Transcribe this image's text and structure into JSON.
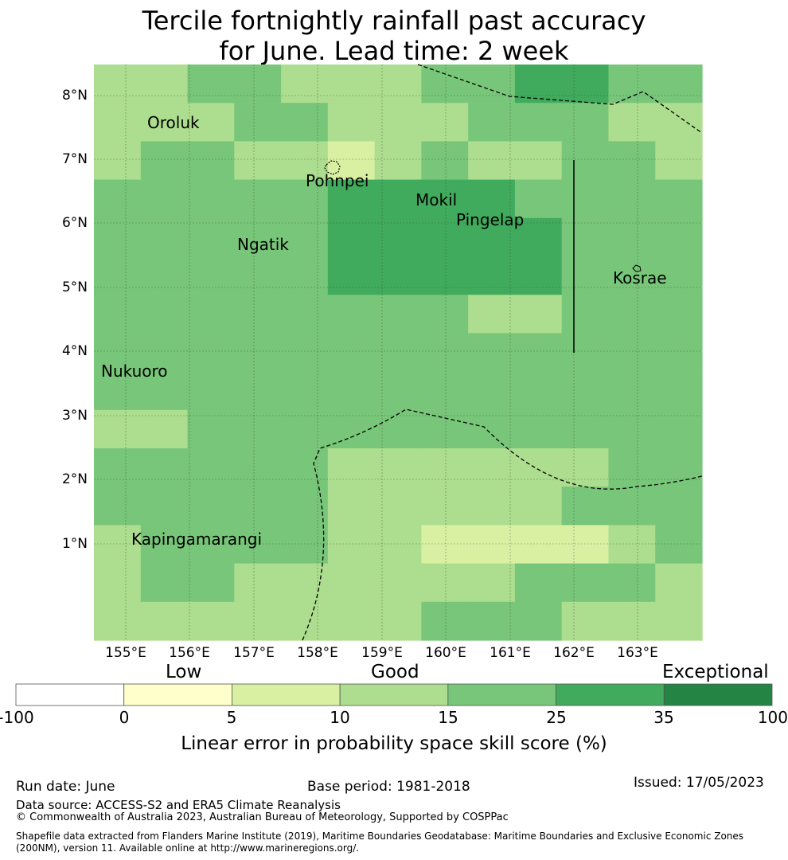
{
  "title": {
    "line1": "Tercile fortnightly rainfall past accuracy",
    "line2": "for June. Lead time: 2 week"
  },
  "map": {
    "lat_labels": [
      "8°N",
      "7°N",
      "6°N",
      "5°N",
      "4°N",
      "3°N",
      "2°N",
      "1°N"
    ],
    "lon_labels": [
      "155°E",
      "156°E",
      "157°E",
      "158°E",
      "159°E",
      "160°E",
      "161°E",
      "162°E",
      "163°E"
    ],
    "places": [
      {
        "name": "Oroluk"
      },
      {
        "name": "Pohnpei"
      },
      {
        "name": "Mokil"
      },
      {
        "name": "Pingelap"
      },
      {
        "name": "Ngatik"
      },
      {
        "name": "Kosrae"
      },
      {
        "name": "Nukuoro"
      },
      {
        "name": "Kapingamarangi"
      }
    ],
    "grid_levels": [
      [
        2,
        2,
        3,
        3,
        2,
        2,
        2,
        3,
        3,
        4,
        4,
        3,
        3
      ],
      [
        2,
        2,
        2,
        3,
        3,
        2,
        2,
        2,
        3,
        3,
        3,
        2,
        2
      ],
      [
        2,
        3,
        3,
        2,
        2,
        1,
        2,
        3,
        2,
        2,
        3,
        3,
        2
      ],
      [
        3,
        3,
        3,
        3,
        3,
        4,
        4,
        4,
        4,
        3,
        3,
        3,
        3
      ],
      [
        3,
        3,
        3,
        3,
        3,
        4,
        4,
        4,
        4,
        4,
        3,
        3,
        3
      ],
      [
        3,
        3,
        3,
        3,
        3,
        4,
        4,
        4,
        4,
        4,
        3,
        3,
        3
      ],
      [
        3,
        3,
        3,
        3,
        3,
        3,
        3,
        3,
        2,
        2,
        3,
        3,
        3
      ],
      [
        3,
        3,
        3,
        3,
        3,
        3,
        3,
        3,
        3,
        3,
        3,
        3,
        3
      ],
      [
        3,
        3,
        3,
        3,
        3,
        3,
        3,
        3,
        3,
        3,
        3,
        3,
        3
      ],
      [
        2,
        2,
        3,
        3,
        3,
        3,
        3,
        3,
        3,
        3,
        3,
        3,
        3
      ],
      [
        3,
        3,
        3,
        3,
        3,
        2,
        2,
        2,
        2,
        2,
        2,
        3,
        3
      ],
      [
        3,
        3,
        3,
        3,
        3,
        2,
        2,
        2,
        2,
        2,
        3,
        3,
        3
      ],
      [
        2,
        3,
        3,
        3,
        3,
        2,
        2,
        1,
        1,
        1,
        1,
        2,
        3
      ],
      [
        2,
        3,
        3,
        2,
        2,
        2,
        2,
        2,
        2,
        3,
        3,
        3,
        2
      ],
      [
        2,
        2,
        2,
        2,
        2,
        2,
        2,
        3,
        3,
        3,
        2,
        2,
        2
      ]
    ],
    "cell_colors": [
      "#ffffcc",
      "#d9f0a3",
      "#addd8e",
      "#78c679",
      "#41ab5d",
      "#238443"
    ]
  },
  "colorbar": {
    "category_low": "Low",
    "category_good": "Good",
    "category_exceptional": "Exceptional",
    "ticks": [
      "-100",
      "0",
      "5",
      "10",
      "15",
      "25",
      "35",
      "100"
    ],
    "colors": [
      "#ffffff",
      "#ffffcc",
      "#d9f0a3",
      "#addd8e",
      "#78c679",
      "#41ab5d",
      "#238443"
    ],
    "label": "Linear error in probability space skill score (%)"
  },
  "footer": {
    "run_date": "Run date: June",
    "base_period": "Base period: 1981-2018",
    "issued": "Issued: 17/05/2023",
    "data_source": "Data source: ACCESS-S2 and ERA5 Climate Reanalysis",
    "copyright": "© Commonwealth of Australia 2023, Australian Bureau of Meteorology, Supported by COSPPac",
    "shapefile": "Shapefile data extracted from Flanders Marine Institute (2019), Maritime Boundaries Geodatabase: Maritime Boundaries and Exclusive Economic Zones (200NM), version 11. Available online at http://www.marineregions.org/."
  }
}
